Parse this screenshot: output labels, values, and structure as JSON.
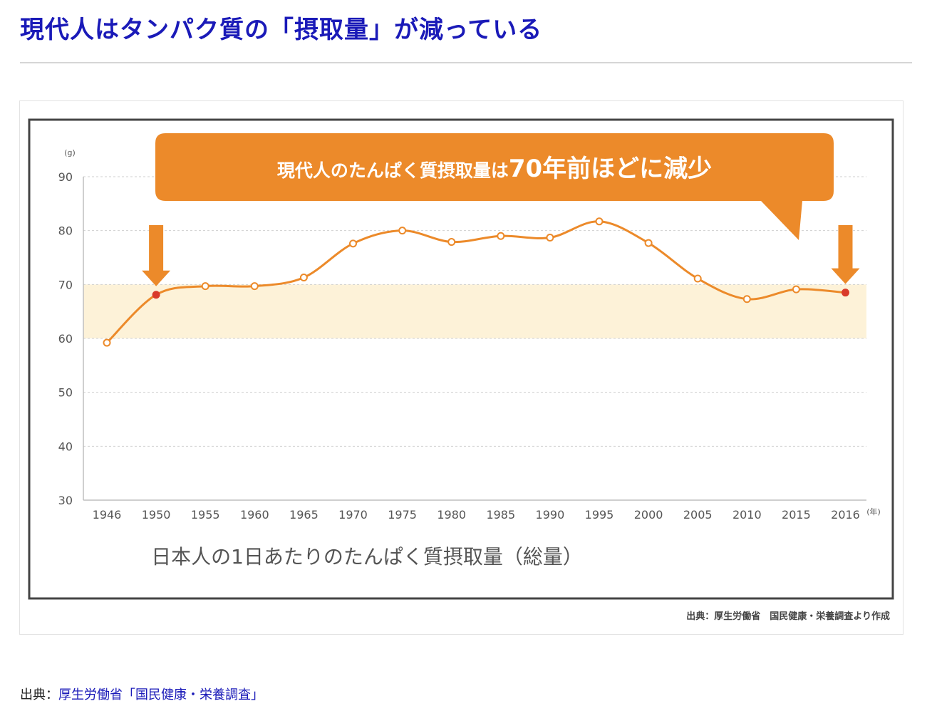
{
  "page": {
    "title": "現代人はタンパク質の「摂取量」が減っている",
    "footer_prefix": "出典：",
    "footer_link": "厚生労働省「国民健康・栄養調査」"
  },
  "colors": {
    "title": "#1a1ab8",
    "orange": "#ec8a2a",
    "band": "#fdf2d8",
    "red_point": "#d93a2b",
    "axis_text": "#555555",
    "frame": "#444444"
  },
  "chart_data": {
    "type": "line",
    "callout": "現代人のたんぱく質摂取量は",
    "callout_big": "70年前ほどに減少",
    "caption": "日本人の1日あたりのたんぱく質摂取量（総量）",
    "source_note": "出典：厚生労働省　国民健康・栄養調査より作成",
    "y_unit": "(g)",
    "x_unit": "(年)",
    "ylim": [
      30,
      90
    ],
    "yticks": [
      30,
      40,
      50,
      60,
      70,
      80,
      90
    ],
    "band_range": [
      60,
      70
    ],
    "categories": [
      "1946",
      "1950",
      "1955",
      "1960",
      "1965",
      "1970",
      "1975",
      "1980",
      "1985",
      "1990",
      "1995",
      "2000",
      "2005",
      "2010",
      "2015",
      "2016"
    ],
    "values": [
      59.2,
      68.1,
      69.7,
      69.7,
      71.3,
      77.6,
      80.0,
      77.9,
      79.0,
      78.7,
      81.7,
      77.7,
      71.1,
      67.3,
      69.1,
      68.5
    ],
    "highlight_points": [
      "1950",
      "2016"
    ],
    "grid": "dotted-horizontal"
  }
}
